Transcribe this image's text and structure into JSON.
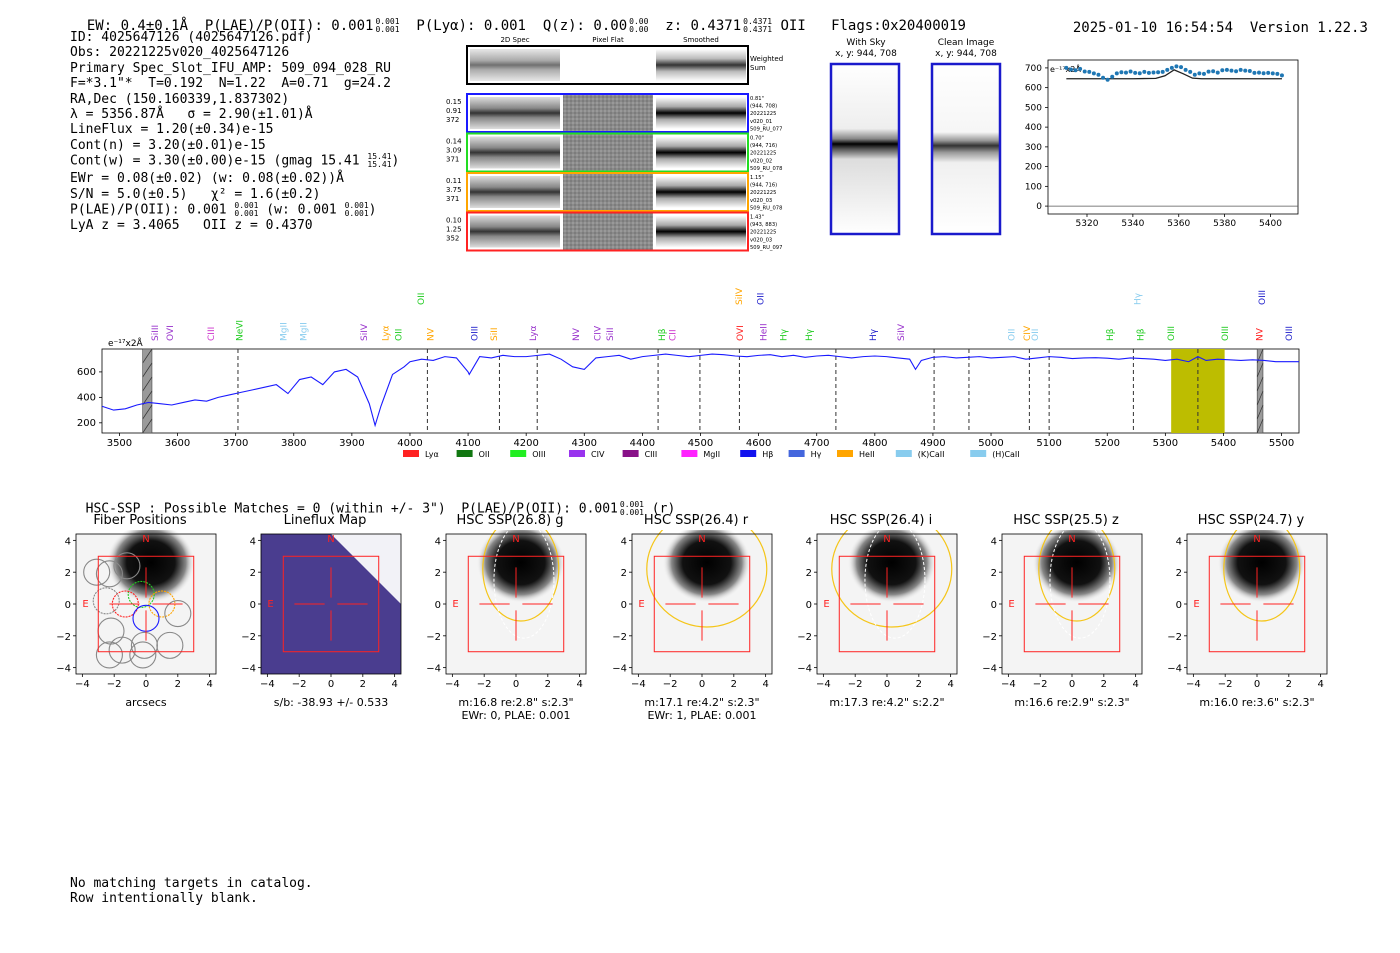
{
  "header": {
    "ew": "EW: 0.4±0.1Å",
    "plae_label": "P(LAE)/P(OII): 0.001",
    "plae_sup": "0.001",
    "plae_sub": "0.001",
    "plya": "P(Lyα): 0.001",
    "qz_label": "Q(z): 0.00",
    "qz_sup": "0.00",
    "qz_sub": "0.00",
    "z_label": "z: 0.4371",
    "z_sup": "0.4371",
    "z_sub": "0.4371",
    "z_line": "OII",
    "flags": "Flags:0x20400019",
    "datetime": "2025-01-10 16:54:54",
    "version": "Version 1.22.3"
  },
  "info": {
    "id": "ID: 4025647126 (4025647126.pdf)",
    "obs": "Obs: 20221225v020_4025647126",
    "primary": "Primary Spec_Slot_IFU_AMP: 509_094_028_RU",
    "fparams": "F=*3.1\"*  T=0.192  N=1.22  A=0.71  g=24.2",
    "radec": "RA,Dec (150.160339,1.837302)",
    "lambda": "λ = 5356.87Å   σ = 2.90(±1.01)Å",
    "lineflux": "LineFlux = 1.20(±0.34)e-15",
    "contn": "Cont(n) = 3.20(±0.01)e-15",
    "contw": "Cont(w) = 3.30(±0.00)e-15 (gmag 15.41",
    "contw_sup": "15.41",
    "contw_sub": "15.41",
    "ewr": "EWr = 0.08(±0.02) (w: 0.08(±0.02))Å",
    "sn": "S/N = 5.0(±0.5)   χ² = 1.6(±0.2)",
    "plae": "P(LAE)/P(OII): 0.001",
    "plae_sup": "0.001",
    "plae_sub": "0.001",
    "plae_w": "(w: 0.001",
    "plae_w_sup": "0.001",
    "plae_w_sub": "0.001",
    "lya": "LyA z = 3.4065   OII z = 0.4370"
  },
  "cutouts": {
    "col_2d": "2D Spec",
    "col_flat": "Pixel Flat",
    "col_smooth": "Smoothed",
    "weighted": "Weighted",
    "sum": "Sum",
    "rows": [
      {
        "color": "#1a1aff",
        "left": [
          "0.15",
          "0.91",
          "372"
        ],
        "right": [
          "0.81\"",
          "(944, 708)",
          "20221225",
          "v020_01",
          "509_RU_077"
        ]
      },
      {
        "color": "#22dd22",
        "left": [
          "0.14",
          "3.09",
          "371"
        ],
        "right": [
          "0.70\"",
          "(944, 716)",
          "20221225",
          "v020_02",
          "509_RU_078"
        ]
      },
      {
        "color": "#ffa500",
        "left": [
          "0.11",
          "3.75",
          "371"
        ],
        "right": [
          "1.15\"",
          "(944, 716)",
          "20221225",
          "v020_03",
          "509_RU_078"
        ]
      },
      {
        "color": "#ff2222",
        "left": [
          "0.10",
          "1.25",
          "352"
        ],
        "right": [
          "1.43\"",
          "(943, 883)",
          "20221225",
          "v020_03",
          "509_RU_097"
        ]
      }
    ]
  },
  "sky": {
    "with_sky": "With Sky",
    "with_sky_xy": "x, y: 944, 708",
    "clean": "Clean Image",
    "clean_xy": "x, y: 944, 708"
  },
  "zoom_chart": {
    "type": "scatter",
    "unit": "e⁻¹⁷x2Å",
    "xticks": [
      5320,
      5340,
      5360,
      5380,
      5400
    ],
    "yticks": [
      0,
      100,
      200,
      300,
      400,
      500,
      600,
      700
    ],
    "xlim": [
      5303,
      5412
    ],
    "ylim": [
      -40,
      740
    ],
    "points_x": [
      5311,
      5313,
      5315,
      5317,
      5319,
      5321,
      5323,
      5325,
      5327,
      5329,
      5331,
      5333,
      5335,
      5337,
      5339,
      5341,
      5343,
      5345,
      5347,
      5349,
      5351,
      5353,
      5355,
      5357,
      5359,
      5361,
      5363,
      5365,
      5367,
      5369,
      5371,
      5373,
      5375,
      5377,
      5379,
      5381,
      5383,
      5385,
      5387,
      5389,
      5391,
      5393,
      5395,
      5397,
      5399,
      5401,
      5403,
      5405
    ],
    "points_y": [
      700,
      692,
      688,
      695,
      682,
      680,
      672,
      665,
      650,
      640,
      655,
      672,
      678,
      676,
      682,
      675,
      673,
      680,
      675,
      677,
      678,
      680,
      690,
      700,
      708,
      704,
      690,
      680,
      665,
      672,
      670,
      681,
      683,
      676,
      688,
      690,
      686,
      683,
      690,
      686,
      684,
      675,
      676,
      673,
      675,
      672,
      670,
      662
    ],
    "model_x": [
      5311,
      5340,
      5350,
      5354,
      5358,
      5362,
      5366,
      5370,
      5405
    ],
    "model_y": [
      645,
      645,
      647,
      660,
      690,
      670,
      648,
      645,
      645
    ]
  },
  "chart_data": {
    "type": "line",
    "ylabel": "e⁻¹⁷x2Å",
    "xlim": [
      3470,
      5530
    ],
    "ylim": [
      120,
      780
    ],
    "xticks": [
      3500,
      3600,
      3700,
      3800,
      3900,
      4000,
      4100,
      4200,
      4300,
      4400,
      4500,
      4600,
      4700,
      4800,
      4900,
      5000,
      5100,
      5200,
      5300,
      5400,
      5500
    ],
    "yticks": [
      200,
      400,
      600
    ],
    "x": [
      3470,
      3490,
      3510,
      3530,
      3550,
      3570,
      3590,
      3610,
      3630,
      3650,
      3670,
      3690,
      3710,
      3730,
      3750,
      3770,
      3790,
      3810,
      3830,
      3850,
      3870,
      3890,
      3910,
      3930,
      3940,
      3950,
      3970,
      3990,
      4000,
      4020,
      4040,
      4060,
      4080,
      4100,
      4102,
      4120,
      4140,
      4160,
      4180,
      4200,
      4220,
      4240,
      4260,
      4280,
      4300,
      4320,
      4340,
      4360,
      4380,
      4400,
      4420,
      4440,
      4460,
      4480,
      4500,
      4520,
      4540,
      4560,
      4580,
      4600,
      4620,
      4640,
      4660,
      4680,
      4700,
      4720,
      4740,
      4760,
      4780,
      4800,
      4820,
      4840,
      4860,
      4870,
      4880,
      4900,
      4920,
      4940,
      4960,
      4980,
      5000,
      5020,
      5040,
      5060,
      5080,
      5100,
      5120,
      5140,
      5160,
      5180,
      5200,
      5220,
      5240,
      5260,
      5280,
      5300,
      5320,
      5340,
      5356,
      5370,
      5390,
      5410,
      5430,
      5450,
      5470,
      5490,
      5510,
      5530
    ],
    "y": [
      330,
      300,
      310,
      340,
      360,
      350,
      340,
      360,
      380,
      370,
      400,
      420,
      440,
      460,
      480,
      500,
      430,
      540,
      560,
      500,
      600,
      620,
      560,
      350,
      180,
      330,
      580,
      640,
      680,
      700,
      690,
      720,
      710,
      600,
      580,
      720,
      710,
      730,
      720,
      720,
      730,
      740,
      700,
      640,
      620,
      710,
      720,
      730,
      700,
      720,
      730,
      740,
      730,
      720,
      730,
      740,
      735,
      725,
      720,
      730,
      735,
      720,
      730,
      715,
      725,
      730,
      720,
      710,
      720,
      725,
      720,
      710,
      700,
      620,
      690,
      715,
      720,
      710,
      715,
      720,
      710,
      715,
      720,
      700,
      710,
      720,
      715,
      705,
      710,
      712,
      708,
      700,
      710,
      705,
      700,
      690,
      700,
      680,
      720,
      690,
      700,
      695,
      690,
      695,
      690,
      680,
      680,
      680
    ],
    "highlight": [
      5310,
      5402
    ],
    "hatched": [
      [
        3540,
        3556
      ],
      [
        5458,
        5468
      ]
    ],
    "dashed_lines": [
      3704,
      4030,
      4154,
      4219,
      4427,
      4499,
      4567,
      4733,
      4902,
      4962,
      5066,
      5100,
      5245,
      5356
    ]
  },
  "line_labels": [
    {
      "name": "SiIII",
      "x": 3561,
      "color": "#9933cc",
      "rot": true
    },
    {
      "name": "OVI",
      "x": 3587,
      "color": "#9933cc",
      "rot": true
    },
    {
      "name": "CIII",
      "x": 3658,
      "color": "#cc33cc",
      "rot": true
    },
    {
      "name": "NeVI",
      "x": 3707,
      "color": "#22cc22",
      "rot": true
    },
    {
      "name": "MgII",
      "x": 3782,
      "color": "#88ccee",
      "rot": true
    },
    {
      "name": "MgII",
      "x": 3817,
      "color": "#88ccee",
      "rot": true
    },
    {
      "name": "SiIV",
      "x": 3921,
      "color": "#9933cc",
      "rot": true
    },
    {
      "name": "Lyα",
      "x": 3958,
      "color": "#ffa500",
      "rot": true
    },
    {
      "name": "OII",
      "x": 3980,
      "color": "#22cc22",
      "rot": true
    },
    {
      "name": "NV",
      "x": 4035,
      "color": "#ffa500",
      "rot": true
    },
    {
      "name": "OIII",
      "x": 4111,
      "color": "#2222cc",
      "rot": true
    },
    {
      "name": "SiII",
      "x": 4145,
      "color": "#ffa500",
      "rot": true
    },
    {
      "name": "Lyα",
      "x": 4212,
      "color": "#9933cc",
      "rot": true
    },
    {
      "name": "NV",
      "x": 4286,
      "color": "#9933cc",
      "rot": true
    },
    {
      "name": "CIV",
      "x": 4323,
      "color": "#9933cc",
      "rot": true
    },
    {
      "name": "SiII",
      "x": 4344,
      "color": "#9933cc",
      "rot": true
    },
    {
      "name": "Hβ",
      "x": 4434,
      "color": "#22cc22",
      "rot": true
    },
    {
      "name": "CII",
      "x": 4452,
      "color": "#cc33cc",
      "rot": true
    },
    {
      "name": "OVI",
      "x": 4568,
      "color": "#ff2222",
      "rot": true
    },
    {
      "name": "HeII",
      "x": 4608,
      "color": "#9933cc",
      "rot": true
    },
    {
      "name": "Hγ",
      "x": 4643,
      "color": "#22cc22",
      "rot": true
    },
    {
      "name": "Hγ",
      "x": 4687,
      "color": "#22cc22",
      "rot": true
    },
    {
      "name": "Hγ",
      "x": 4797,
      "color": "#2222cc",
      "rot": true
    },
    {
      "name": "SiIV",
      "x": 4845,
      "color": "#9933cc",
      "rot": true
    },
    {
      "name": "OII",
      "x": 5035,
      "color": "#88ccee",
      "rot": true
    },
    {
      "name": "CIV",
      "x": 5062,
      "color": "#ffa500",
      "rot": true
    },
    {
      "name": "OII",
      "x": 5076,
      "color": "#88ccee",
      "rot": true
    },
    {
      "name": "Hβ",
      "x": 5205,
      "color": "#22cc22",
      "rot": true
    },
    {
      "name": "Hβ",
      "x": 5257,
      "color": "#22cc22",
      "rot": true
    },
    {
      "name": "OIII",
      "x": 5310,
      "color": "#22cc22",
      "rot": true
    },
    {
      "name": "OIII",
      "x": 5403,
      "color": "#22cc22",
      "rot": true
    },
    {
      "name": "NV",
      "x": 5462,
      "color": "#ff2222",
      "rot": true
    },
    {
      "name": "OIII",
      "x": 5513,
      "color": "#2222cc",
      "rot": true
    }
  ],
  "top_line_labels": [
    {
      "name": "OII",
      "x": 4019,
      "color": "#22cc22"
    },
    {
      "name": "SiIV",
      "x": 4566,
      "color": "#ffa500"
    },
    {
      "name": "OII",
      "x": 4603,
      "color": "#2222cc"
    },
    {
      "name": "Hγ",
      "x": 5252,
      "color": "#88ccee"
    },
    {
      "name": "OIII",
      "x": 5466,
      "color": "#2222cc"
    }
  ],
  "legend": [
    {
      "name": "Lyα",
      "color": "#ff2222"
    },
    {
      "name": "OII",
      "color": "#117711"
    },
    {
      "name": "OIII",
      "color": "#22ee22"
    },
    {
      "name": "CIV",
      "color": "#9933ee"
    },
    {
      "name": "CIII",
      "color": "#881188"
    },
    {
      "name": "MgII",
      "color": "#ff22ff"
    },
    {
      "name": "Hβ",
      "color": "#1111ee"
    },
    {
      "name": "Hγ",
      "color": "#4466dd"
    },
    {
      "name": "HeII",
      "color": "#ffa500"
    },
    {
      "name": "(K)CaII",
      "color": "#88ccee"
    },
    {
      "name": "(H)CaII",
      "color": "#88ccee"
    }
  ],
  "hsc": {
    "summary": "HSC-SSP : Possible Matches = 0 (within +/- 3\")  P(LAE)/P(OII): 0.001",
    "summary_sup": "0.001",
    "summary_sub": "0.001",
    "summary_suffix": "(r)",
    "axis_ticks": [
      "−4",
      "−2",
      "0",
      "2",
      "4"
    ],
    "panels": [
      {
        "title": "Fiber Positions",
        "cap1": "arcsecs",
        "cap2": ""
      },
      {
        "title": "Lineflux Map",
        "cap1": "s/b: -38.93 +/- 0.533",
        "cap2": ""
      },
      {
        "title": "HSC SSP(26.8) g",
        "cap1": "m:16.8  re:2.8\"  s:2.3\"",
        "cap2": "EWr: 0, PLAE: 0.001"
      },
      {
        "title": "HSC SSP(26.4) r",
        "cap1": "m:17.1  re:4.2\"  s:2.3\"",
        "cap2": "EWr: 1, PLAE: 0.001"
      },
      {
        "title": "HSC SSP(26.4) i",
        "cap1": "m:17.3  re:4.2\"  s:2.2\"",
        "cap2": ""
      },
      {
        "title": "HSC SSP(25.5) z",
        "cap1": "m:16.6  re:2.9\"  s:2.3\"",
        "cap2": ""
      },
      {
        "title": "HSC SSP(24.7) y",
        "cap1": "m:16.0  re:3.6\"  s:2.3\"",
        "cap2": ""
      }
    ],
    "n_label": "N",
    "e_label": "E"
  },
  "footer": {
    "line1": "No matching targets in catalog.",
    "line2": "Row intentionally blank."
  },
  "colors": {
    "spectrum": "#1a1aff",
    "highlight": "#bdbd00",
    "red": "#ff2222",
    "gold": "#f5c518"
  }
}
